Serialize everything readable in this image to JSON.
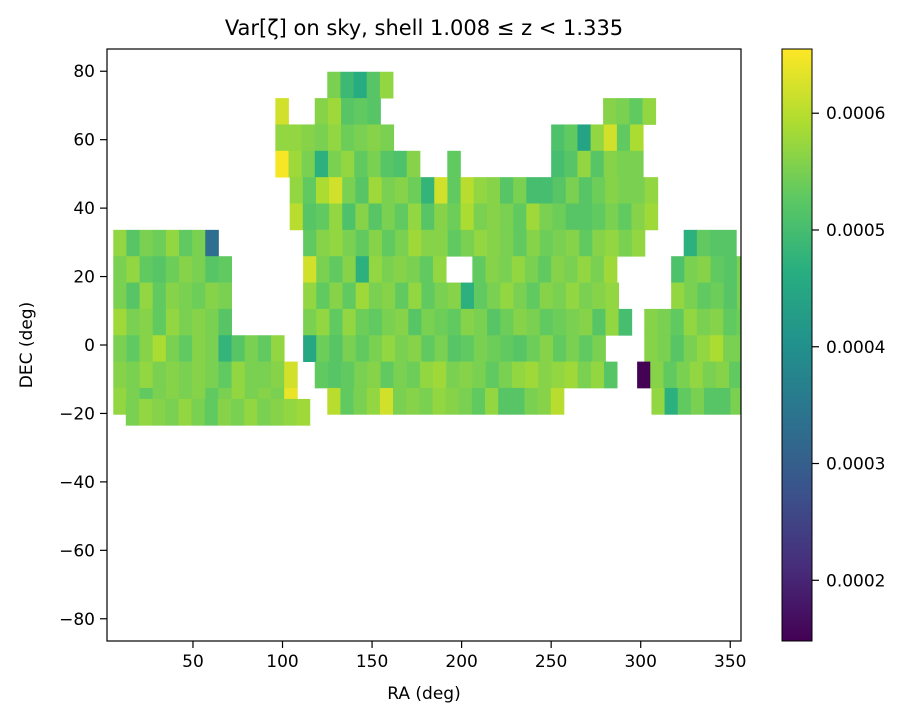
{
  "chart_data": {
    "type": "heatmap",
    "title": "Var[ζ] on sky, shell 1.008 ≤ z < 1.335",
    "xlabel": "RA (deg)",
    "ylabel": "DEC (deg)",
    "xlim": [
      2,
      356
    ],
    "ylim": [
      -86.5,
      86.5
    ],
    "xticks": [
      50,
      100,
      150,
      200,
      250,
      300,
      350
    ],
    "yticks": [
      -80,
      -60,
      -40,
      -20,
      0,
      20,
      40,
      60,
      80
    ],
    "xtick_labels": [
      "50",
      "100",
      "150",
      "200",
      "250",
      "300",
      "350"
    ],
    "ytick_labels": [
      "−80",
      "−60",
      "−40",
      "−20",
      "0",
      "20",
      "40",
      "60",
      "80"
    ],
    "colorscale": "viridis",
    "colorbar": {
      "range": [
        0.000148,
        0.000655
      ],
      "ticks": [
        0.0002,
        0.0003,
        0.0004,
        0.0005,
        0.0006
      ],
      "tick_labels": [
        "0.0002",
        "0.0003",
        "0.0004",
        "0.0005",
        "0.0006"
      ]
    },
    "cell_width_deg": 7.34,
    "cell_height_deg": 7.7,
    "rows": [
      {
        "dec": 76.0,
        "cells": [
          [
            125.0,
            [
              0.00055,
              0.00049,
              0.00046,
              0.00052,
              0.00057
            ]
          ]
        ]
      },
      {
        "dec": 68.3,
        "cells": [
          [
            96.0,
            [
              0.00062
            ]
          ],
          [
            118.0,
            [
              0.00056,
              0.00058,
              0.00052,
              0.00053,
              0.00052
            ]
          ],
          [
            279.0,
            [
              0.00056,
              0.00055,
              0.00053,
              0.00057
            ]
          ]
        ]
      },
      {
        "dec": 60.6,
        "cells": [
          [
            96.0,
            [
              0.00057,
              0.00057,
              0.00056,
              0.00055,
              0.00057,
              0.00054,
              0.00055,
              0.00056,
              0.00055
            ]
          ],
          [
            250.0,
            [
              0.00051,
              0.00053,
              0.00044,
              0.00057,
              0.00062,
              0.00053,
              0.00059
            ]
          ]
        ]
      },
      {
        "dec": 52.9,
        "cells": [
          [
            96.0,
            [
              0.00065,
              0.00058,
              0.00055,
              0.00047,
              0.00055,
              0.00057,
              0.00053,
              0.00055,
              0.00052,
              0.00051,
              0.00056
            ]
          ],
          [
            192.0,
            [
              0.00053
            ]
          ],
          [
            250.0,
            [
              0.0005,
              0.00052,
              0.00057,
              0.00052,
              0.00056,
              0.00055,
              0.00055
            ]
          ]
        ]
      },
      {
        "dec": 45.2,
        "cells": [
          [
            104.0,
            [
              0.00057,
              0.00053,
              0.00059,
              0.00062,
              0.00055,
              0.00052,
              0.00058,
              0.00055,
              0.00056,
              0.00054,
              0.00048,
              0.00062,
              0.00053,
              0.0006,
              0.00057,
              0.00056,
              0.00052,
              0.00055,
              0.0005,
              0.0005,
              0.00052,
              0.00055,
              0.00052,
              0.00054,
              0.00056,
              0.00055,
              0.00055,
              0.00057
            ]
          ]
        ]
      },
      {
        "dec": 37.5,
        "cells": [
          [
            104.0,
            [
              0.0006,
              0.00052,
              0.00053,
              0.00057,
              0.00051,
              0.00056,
              0.00052,
              0.00055,
              0.00053,
              0.00057,
              0.00052,
              0.00056,
              0.00054,
              0.00059,
              0.00055,
              0.00056,
              0.00055,
              0.00053,
              0.00058,
              0.00055,
              0.00054,
              0.00052,
              0.00052,
              0.00053,
              0.00055,
              0.00053,
              0.00056,
              0.00058
            ]
          ]
        ]
      },
      {
        "dec": 29.8,
        "cells": [
          [
            5.5,
            [
              0.00057,
              0.00052,
              0.00055,
              0.00054,
              0.00057,
              0.00053,
              0.00055,
              0.00033
            ]
          ],
          [
            111.5,
            [
              0.00053,
              0.00056,
              0.00057,
              0.00055,
              0.00053,
              0.00056,
              0.00053,
              0.00055,
              0.00058,
              0.00056,
              0.00056,
              0.00053,
              0.00055,
              0.00057,
              0.00056,
              0.00055,
              0.00053,
              0.00056,
              0.00054,
              0.00055,
              0.00056,
              0.00053,
              0.00056,
              0.00057,
              0.00055,
              0.00057
            ]
          ],
          [
            324.0,
            [
              0.00047,
              0.00053,
              0.00052,
              0.00052
            ]
          ]
        ]
      },
      {
        "dec": 22.1,
        "cells": [
          [
            5.5,
            [
              0.00055,
              0.00057,
              0.00053,
              0.00052,
              0.00054,
              0.00056,
              0.00055,
              0.00052,
              0.00053
            ]
          ],
          [
            111.5,
            [
              0.00062,
              0.00055,
              0.00053,
              0.00056,
              0.00047,
              0.00057,
              0.00055
            ]
          ],
          [
            162.0,
            [
              0.00056,
              0.00055,
              0.00053,
              0.00057
            ]
          ],
          [
            206.0,
            [
              0.00053,
              0.00056,
              0.00055,
              0.00057,
              0.00055,
              0.00053,
              0.00056,
              0.00055,
              0.00057,
              0.00055,
              0.00058
            ]
          ],
          [
            317.0,
            [
              0.00051,
              0.00055,
              0.00056,
              0.00053,
              0.00052,
              0.00055,
              0.00053,
              0.00057,
              0.0006
            ]
          ]
        ]
      },
      {
        "dec": 14.4,
        "cells": [
          [
            5.5,
            [
              0.00055,
              0.00052,
              0.00057,
              0.00053,
              0.00056,
              0.00055,
              0.00054,
              0.00056,
              0.00055
            ]
          ],
          [
            111.5,
            [
              0.00057,
              0.00053,
              0.00056,
              0.00053,
              0.00058,
              0.00055,
              0.00056,
              0.00053,
              0.00057,
              0.00053,
              0.00055,
              0.00056,
              0.00047,
              0.00053,
              0.00055,
              0.00057,
              0.00055,
              0.00053,
              0.00056,
              0.00055,
              0.00057,
              0.00055,
              0.00056,
              0.00057
            ]
          ],
          [
            317.0,
            [
              0.00057,
              0.00055,
              0.00053,
              0.00054,
              0.00052,
              0.00055,
              0.00053,
              0.00056,
              0.00057
            ]
          ]
        ]
      },
      {
        "dec": 6.7,
        "cells": [
          [
            5.5,
            [
              0.00058,
              0.00055,
              0.00056,
              0.00053,
              0.00057,
              0.00055,
              0.00056,
              0.00055,
              0.00052
            ]
          ],
          [
            111.5,
            [
              0.00055,
              0.00057,
              0.00053,
              0.00057,
              0.00054,
              0.00053,
              0.00055,
              0.00056,
              0.00052,
              0.00055,
              0.00054,
              0.00053,
              0.00056,
              0.00055,
              0.00052,
              0.00054,
              0.00056,
              0.00055,
              0.00053,
              0.00054,
              0.00055,
              0.00056,
              0.00052,
              0.00057,
              0.0005
            ]
          ],
          [
            302.0,
            [
              0.00056,
              0.00055,
              0.00053,
              0.00057,
              0.00055,
              0.00056,
              0.00053,
              0.00054,
              0.00055,
              0.00057,
              0.00055
            ]
          ]
        ]
      },
      {
        "dec": -1.0,
        "cells": [
          [
            5.5,
            [
              0.00055,
              0.00053,
              0.00056,
              0.00059,
              0.00055,
              0.00053,
              0.00056,
              0.00055,
              0.00048,
              0.00052,
              0.00055,
              0.00053,
              0.00057
            ]
          ],
          [
            111.5,
            [
              0.00045,
              0.00054,
              0.00052,
              0.00055,
              0.00053,
              0.00055,
              0.00057,
              0.00055,
              0.00056,
              0.00053,
              0.00055,
              0.00052,
              0.00053,
              0.00055,
              0.00054,
              0.00053,
              0.00052,
              0.00054,
              0.00056,
              0.00053,
              0.00055,
              0.00053,
              0.00055
            ]
          ],
          [
            302.0,
            [
              0.00056,
              0.00055,
              0.00052,
              0.00055,
              0.00057,
              0.00059,
              0.00055,
              0.00055,
              0.00053,
              0.00055,
              0.00057,
              0.00054
            ]
          ]
        ]
      },
      {
        "dec": -8.7,
        "cells": [
          [
            5.5,
            [
              0.00056,
              0.00055,
              0.00057,
              0.00055,
              0.00056,
              0.00055,
              0.00056,
              0.00055,
              0.00053,
              0.00057,
              0.00055,
              0.00055,
              0.00056,
              0.00062
            ]
          ],
          [
            118.0,
            [
              0.00053,
              0.00052,
              0.00053,
              0.00055,
              0.00056,
              0.00053,
              0.00055,
              0.00054,
              0.00057,
              0.00058,
              0.00055,
              0.00056,
              0.00055,
              0.00053,
              0.00055,
              0.00057,
              0.00058,
              0.00056,
              0.00057,
              0.00058,
              0.00055,
              0.00057,
              0.00052
            ]
          ],
          [
            298.0,
            [
              0.00015,
              0.00056,
              0.00053,
              0.00055,
              0.00057,
              0.00055,
              0.00056,
              0.00053,
              0.00057,
              0.00054,
              0.00056,
              0.00055,
              0.00055
            ]
          ]
        ]
      },
      {
        "dec": -16.4,
        "cells": [
          [
            5.5,
            [
              0.00057,
              0.00055,
              0.00053,
              0.00055,
              0.00056,
              0.00055,
              0.00056,
              0.00053,
              0.00055,
              0.00057,
              0.00055,
              0.00056,
              0.00055,
              0.00064
            ]
          ],
          [
            125.0,
            [
              0.0006,
              0.00053,
              0.00055,
              0.00057,
              0.00062,
              0.00055,
              0.00056,
              0.00055,
              0.00057,
              0.00056,
              0.00055,
              0.00053,
              0.00057,
              0.00052,
              0.00052,
              0.00055,
              0.00056,
              0.0006
            ]
          ],
          [
            306.0,
            [
              0.00057,
              0.00047,
              0.00053,
              0.00055,
              0.00052,
              0.00052,
              0.00055
            ]
          ]
        ]
      },
      {
        "dec": -19.6,
        "cells": [
          [
            12.5,
            [
              0.00055,
              0.00057,
              0.00056,
              0.00055,
              0.00057,
              0.00055,
              0.00053,
              0.00056,
              0.00055,
              0.00057,
              0.00055,
              0.00056,
              0.00057,
              0.00058
            ]
          ]
        ]
      }
    ]
  }
}
